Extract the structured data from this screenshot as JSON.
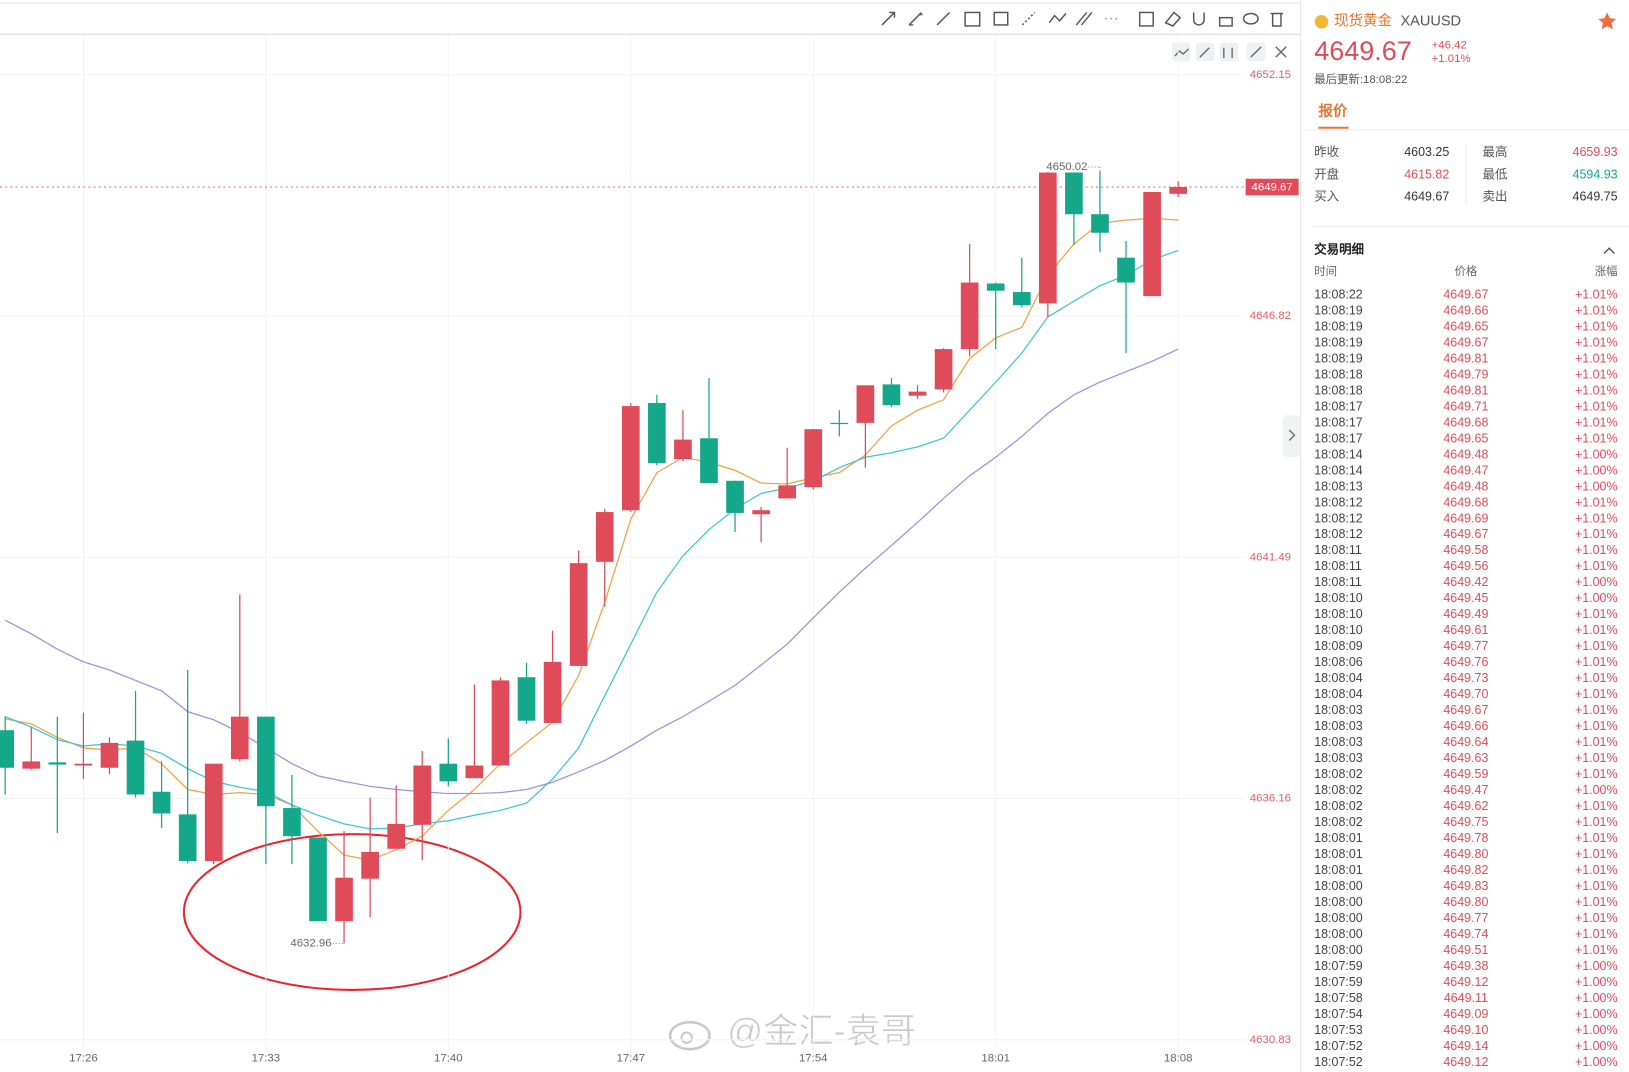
{
  "chart_data": {
    "type": "candlestick",
    "categories": [
      null,
      null,
      null,
      "17:26",
      null,
      null,
      null,
      null,
      null,
      null,
      "17:33",
      null,
      null,
      null,
      null,
      null,
      null,
      "17:40",
      null,
      null,
      null,
      null,
      null,
      null,
      "17:47",
      null,
      null,
      null,
      null,
      null,
      null,
      "17:54",
      null,
      null,
      null,
      null,
      null,
      null,
      "18:01",
      null,
      null,
      null,
      null,
      null,
      null,
      "18:08"
    ],
    "open": [
      4637.67,
      4636.82,
      4636.96,
      4636.89,
      4636.84,
      4637.44,
      4636.31,
      4635.81,
      4634.78,
      4637.03,
      4637.97,
      4635.95,
      4635.3,
      4633.45,
      4634.39,
      4635.05,
      4635.58,
      4636.93,
      4636.61,
      4636.89,
      4638.84,
      4637.83,
      4639.09,
      4641.39,
      4642.53,
      4644.9,
      4643.66,
      4644.12,
      4643.18,
      4642.44,
      4642.79,
      4643.04,
      4644.46,
      4644.46,
      4645.31,
      4645.06,
      4645.2,
      4646.09,
      4647.54,
      4647.35,
      4647.1,
      4649.99,
      4649.07,
      4648.11,
      4647.26,
      4649.52
    ],
    "high": [
      4637.97,
      4637.74,
      4637.97,
      4638.06,
      4637.51,
      4638.54,
      4636.98,
      4639.0,
      4636.93,
      4640.67,
      4637.97,
      4636.68,
      4635.3,
      4635.44,
      4636.18,
      4636.45,
      4637.21,
      4637.49,
      4638.68,
      4638.84,
      4639.16,
      4639.87,
      4641.64,
      4642.56,
      4644.9,
      4645.08,
      4644.74,
      4645.45,
      4643.18,
      4642.6,
      4643.91,
      4644.32,
      4644.74,
      4645.29,
      4645.45,
      4645.29,
      4646.11,
      4648.41,
      4647.56,
      4648.11,
      4650.0,
      4650.0,
      4650.02,
      4648.48,
      4649.56,
      4649.8
    ],
    "low": [
      4636.25,
      4636.8,
      4635.4,
      4636.59,
      4636.7,
      4636.18,
      4635.51,
      4634.73,
      4634.71,
      4636.98,
      4634.71,
      4634.71,
      4633.45,
      4632.96,
      4633.54,
      4635.05,
      4634.8,
      4636.43,
      4636.61,
      4636.89,
      4637.81,
      4637.83,
      4639.09,
      4640.4,
      4642.49,
      4643.52,
      4643.61,
      4643.13,
      4642.05,
      4641.82,
      4642.79,
      4642.99,
      4644.16,
      4643.47,
      4644.81,
      4644.99,
      4645.13,
      4645.93,
      4646.09,
      4647.01,
      4646.8,
      4648.39,
      4648.23,
      4646.0,
      4647.26,
      4649.45
    ],
    "close": [
      4636.84,
      4636.98,
      4636.91,
      4636.93,
      4637.39,
      4636.25,
      4635.83,
      4634.78,
      4636.93,
      4637.97,
      4635.99,
      4635.33,
      4633.45,
      4634.41,
      4634.98,
      4635.6,
      4636.89,
      4636.54,
      4636.89,
      4638.77,
      4637.88,
      4639.18,
      4641.36,
      4642.49,
      4644.83,
      4643.57,
      4644.09,
      4643.13,
      4642.47,
      4642.53,
      4643.08,
      4644.32,
      4644.44,
      4645.29,
      4644.85,
      4645.15,
      4646.09,
      4647.56,
      4647.38,
      4647.06,
      4649.99,
      4649.07,
      4648.66,
      4647.56,
      4649.56,
      4649.67
    ],
    "up_color": "#e04b5a",
    "down_color": "#13a88a",
    "series": [
      {
        "color": "#f5a045",
        "values": [
          4637.92,
          4637.81,
          4637.51,
          4637.28,
          4637.23,
          4637.28,
          4636.93,
          4636.36,
          4636.25,
          4636.29,
          4636.25,
          4636.02,
          4635.44,
          4634.91,
          4634.8,
          4635.03,
          4635.33,
          4635.9,
          4636.36,
          4636.93,
          4637.39,
          4637.85,
          4638.88,
          4640.49,
          4642.33,
          4643.36,
          4643.7,
          4643.59,
          4643.41,
          4643.13,
          4643.11,
          4643.25,
          4643.36,
          4643.75,
          4644.39,
          4644.74,
          4644.97,
          4645.88,
          4646.34,
          4646.57,
          4647.72,
          4648.41,
          4648.87,
          4648.94,
          4648.98,
          4648.94
        ]
      },
      {
        "color": "#3cc6d6",
        "values": [
          4637.97,
          4637.74,
          4637.46,
          4637.32,
          4637.37,
          4637.32,
          4637.16,
          4636.82,
          4636.54,
          4636.41,
          4636.31,
          4636.02,
          4635.79,
          4635.6,
          4635.49,
          4635.51,
          4635.6,
          4635.67,
          4635.79,
          4635.9,
          4636.06,
          4636.59,
          4637.28,
          4638.43,
          4639.57,
          4640.72,
          4641.52,
          4642.1,
          4642.56,
          4642.9,
          4643.02,
          4643.18,
          4643.47,
          4643.7,
          4643.8,
          4643.93,
          4644.12,
          4644.74,
          4645.36,
          4646.0,
          4646.8,
          4647.15,
          4647.49,
          4647.72,
          4648.06,
          4648.27
        ]
      },
      {
        "color": "#a08fe2",
        "values": [
          4640.1,
          4639.8,
          4639.46,
          4639.18,
          4639.0,
          4638.77,
          4638.54,
          4638.08,
          4637.9,
          4637.62,
          4637.28,
          4636.93,
          4636.66,
          4636.54,
          4636.43,
          4636.36,
          4636.31,
          4636.27,
          4636.27,
          4636.29,
          4636.36,
          4636.52,
          4636.75,
          4637.0,
          4637.32,
          4637.67,
          4637.97,
          4638.31,
          4638.66,
          4639.11,
          4639.57,
          4640.15,
          4640.72,
          4641.25,
          4641.75,
          4642.26,
          4642.79,
          4643.29,
          4643.7,
          4644.16,
          4644.67,
          4645.08,
          4645.36,
          4645.59,
          4645.82,
          4646.09
        ]
      }
    ],
    "ylim": [
      4630.6,
      4652.3
    ],
    "yticks": [
      4652.15,
      4646.82,
      4641.49,
      4636.16,
      4630.83
    ],
    "grid": true,
    "annotations": {
      "low": 4632.96,
      "high": 4650.02
    },
    "last_price": 4649.67,
    "watermark": "@金汇-袁哥"
  },
  "quote": {
    "name": "现货黄金",
    "symbol": "XAUUSD",
    "price": "4649.67",
    "change": "+46.42",
    "change_pct": "+1.01%",
    "updated": "最后更新:18:08:22",
    "tab": "报价",
    "stats": [
      {
        "label": "昨收",
        "value": "4603.25",
        "color": "#333333"
      },
      {
        "label": "开盘",
        "value": "4615.82",
        "color": "#e04b5a"
      },
      {
        "label": "买入",
        "value": "4649.67",
        "color": "#333333"
      },
      {
        "label": "最高",
        "value": "4659.93",
        "color": "#e04b5a"
      },
      {
        "label": "最低",
        "value": "4594.93",
        "color": "#13a88a"
      },
      {
        "label": "卖出",
        "value": "4649.75",
        "color": "#333333"
      }
    ]
  },
  "trades": {
    "title": "交易明细",
    "headers": [
      "时间",
      "价格",
      "涨幅"
    ],
    "rows": [
      [
        "18:08:22",
        "4649.67",
        "+1.01%"
      ],
      [
        "18:08:19",
        "4649.66",
        "+1.01%"
      ],
      [
        "18:08:19",
        "4649.65",
        "+1.01%"
      ],
      [
        "18:08:19",
        "4649.67",
        "+1.01%"
      ],
      [
        "18:08:19",
        "4649.81",
        "+1.01%"
      ],
      [
        "18:08:18",
        "4649.79",
        "+1.01%"
      ],
      [
        "18:08:18",
        "4649.81",
        "+1.01%"
      ],
      [
        "18:08:17",
        "4649.71",
        "+1.01%"
      ],
      [
        "18:08:17",
        "4649.68",
        "+1.01%"
      ],
      [
        "18:08:17",
        "4649.65",
        "+1.01%"
      ],
      [
        "18:08:14",
        "4649.48",
        "+1.00%"
      ],
      [
        "18:08:14",
        "4649.47",
        "+1.00%"
      ],
      [
        "18:08:13",
        "4649.48",
        "+1.00%"
      ],
      [
        "18:08:12",
        "4649.68",
        "+1.01%"
      ],
      [
        "18:08:12",
        "4649.69",
        "+1.01%"
      ],
      [
        "18:08:12",
        "4649.67",
        "+1.01%"
      ],
      [
        "18:08:11",
        "4649.58",
        "+1.01%"
      ],
      [
        "18:08:11",
        "4649.56",
        "+1.01%"
      ],
      [
        "18:08:11",
        "4649.42",
        "+1.00%"
      ],
      [
        "18:08:10",
        "4649.45",
        "+1.00%"
      ],
      [
        "18:08:10",
        "4649.49",
        "+1.01%"
      ],
      [
        "18:08:10",
        "4649.61",
        "+1.01%"
      ],
      [
        "18:08:09",
        "4649.77",
        "+1.01%"
      ],
      [
        "18:08:06",
        "4649.76",
        "+1.01%"
      ],
      [
        "18:08:04",
        "4649.73",
        "+1.01%"
      ],
      [
        "18:08:04",
        "4649.70",
        "+1.01%"
      ],
      [
        "18:08:03",
        "4649.67",
        "+1.01%"
      ],
      [
        "18:08:03",
        "4649.66",
        "+1.01%"
      ],
      [
        "18:08:03",
        "4649.64",
        "+1.01%"
      ],
      [
        "18:08:03",
        "4649.63",
        "+1.01%"
      ],
      [
        "18:08:02",
        "4649.59",
        "+1.01%"
      ],
      [
        "18:08:02",
        "4649.47",
        "+1.00%"
      ],
      [
        "18:08:02",
        "4649.62",
        "+1.01%"
      ],
      [
        "18:08:02",
        "4649.75",
        "+1.01%"
      ],
      [
        "18:08:01",
        "4649.78",
        "+1.01%"
      ],
      [
        "18:08:01",
        "4649.80",
        "+1.01%"
      ],
      [
        "18:08:01",
        "4649.82",
        "+1.01%"
      ],
      [
        "18:08:00",
        "4649.83",
        "+1.01%"
      ],
      [
        "18:08:00",
        "4649.80",
        "+1.01%"
      ],
      [
        "18:08:00",
        "4649.77",
        "+1.01%"
      ],
      [
        "18:08:00",
        "4649.74",
        "+1.01%"
      ],
      [
        "18:08:00",
        "4649.51",
        "+1.01%"
      ],
      [
        "18:07:59",
        "4649.38",
        "+1.00%"
      ],
      [
        "18:07:59",
        "4649.12",
        "+1.00%"
      ],
      [
        "18:07:58",
        "4649.11",
        "+1.00%"
      ],
      [
        "18:07:54",
        "4649.09",
        "+1.00%"
      ],
      [
        "18:07:53",
        "4649.10",
        "+1.00%"
      ],
      [
        "18:07:52",
        "4649.14",
        "+1.00%"
      ],
      [
        "18:07:52",
        "4649.12",
        "+1.00%"
      ]
    ]
  }
}
